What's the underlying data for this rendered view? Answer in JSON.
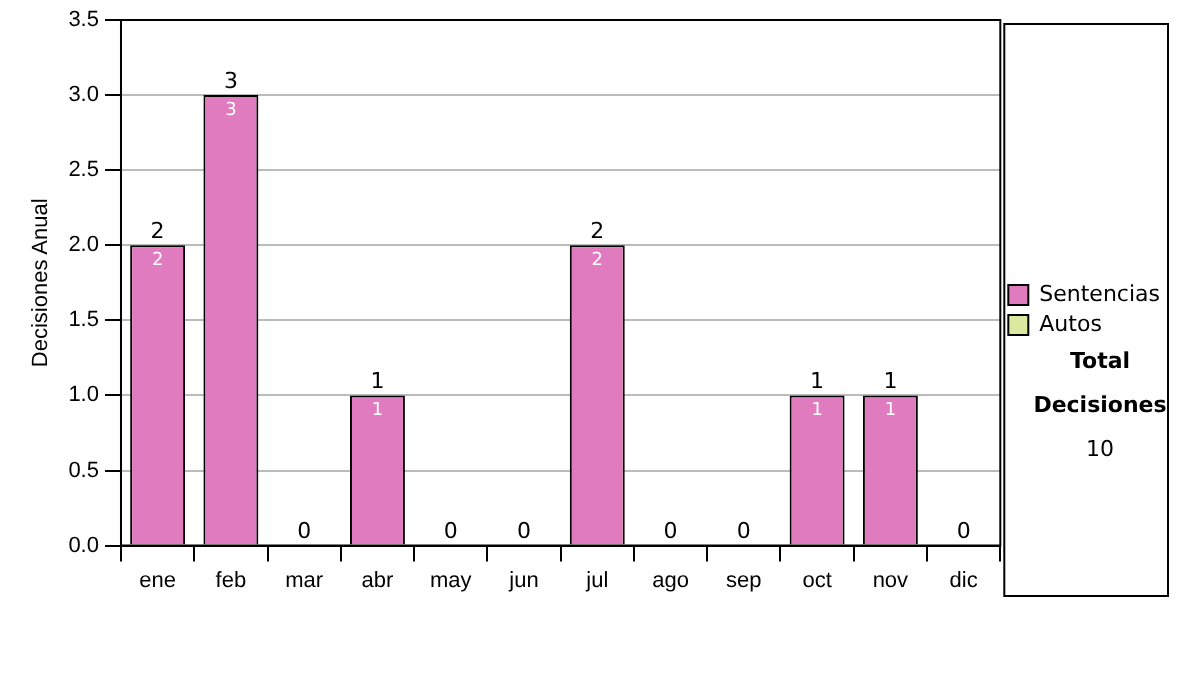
{
  "chart_data": {
    "type": "bar",
    "stacked": true,
    "ylabel": "Decisiones Anual",
    "categories": [
      "ene",
      "feb",
      "mar",
      "abr",
      "may",
      "jun",
      "jul",
      "ago",
      "sep",
      "oct",
      "nov",
      "dic"
    ],
    "series": [
      {
        "name": "Sentencias",
        "color": "#e07bbf",
        "values": [
          2,
          3,
          0,
          1,
          0,
          0,
          2,
          0,
          0,
          1,
          1,
          0
        ],
        "value_labels": [
          "2",
          "3",
          null,
          "1",
          null,
          null,
          "2",
          null,
          null,
          "1",
          "1",
          null
        ]
      },
      {
        "name": "Autos",
        "color": "#d9eaa0",
        "values": [
          0,
          0,
          0,
          0,
          0,
          0,
          0,
          0,
          0,
          0,
          0,
          0
        ]
      }
    ],
    "totals": [
      "2",
      "3",
      "0",
      "1",
      "0",
      "0",
      "2",
      "0",
      "0",
      "1",
      "1",
      "0"
    ],
    "ylim": [
      0,
      3.5
    ],
    "yticks": [
      {
        "value": 0,
        "label": "0.0"
      },
      {
        "value": 0.5,
        "label": "0.5"
      },
      {
        "value": 1,
        "label": "1.0"
      },
      {
        "value": 1.5,
        "label": "1.5"
      },
      {
        "value": 2,
        "label": "2.0"
      },
      {
        "value": 2.5,
        "label": "2.5"
      },
      {
        "value": 3,
        "label": "3.0"
      },
      {
        "value": 3.5,
        "label": "3.5"
      }
    ],
    "grid": "y",
    "legend": "right",
    "annotations": [
      "Total Decisiones",
      "10"
    ]
  }
}
